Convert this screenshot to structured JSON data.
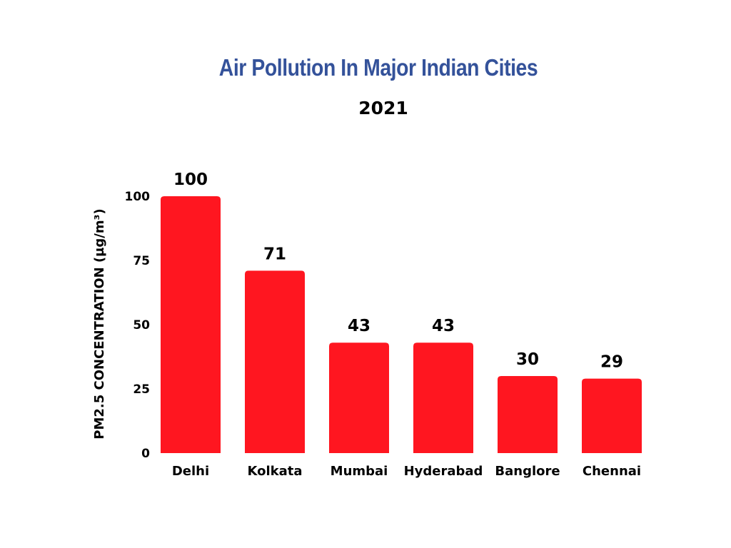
{
  "colors": {
    "title": "#34529a",
    "bar": "#ff1620",
    "text": "#000000",
    "background": "#ffffff"
  },
  "chart_data": {
    "type": "bar",
    "title": "Air Pollution In Major Indian Cities",
    "subtitle": "2021",
    "xlabel": "",
    "ylabel": "PM2.5 CONCENTRATION (µg/m³)",
    "categories": [
      "Delhi",
      "Kolkata",
      "Mumbai",
      "Hyderabad",
      "Banglore",
      "Chennai"
    ],
    "values": [
      100,
      71,
      43,
      43,
      30,
      29
    ],
    "ylim": [
      0,
      100
    ],
    "yticks": [
      0,
      25,
      50,
      75,
      100
    ],
    "grid": false,
    "legend": "none",
    "data_labels": true
  }
}
